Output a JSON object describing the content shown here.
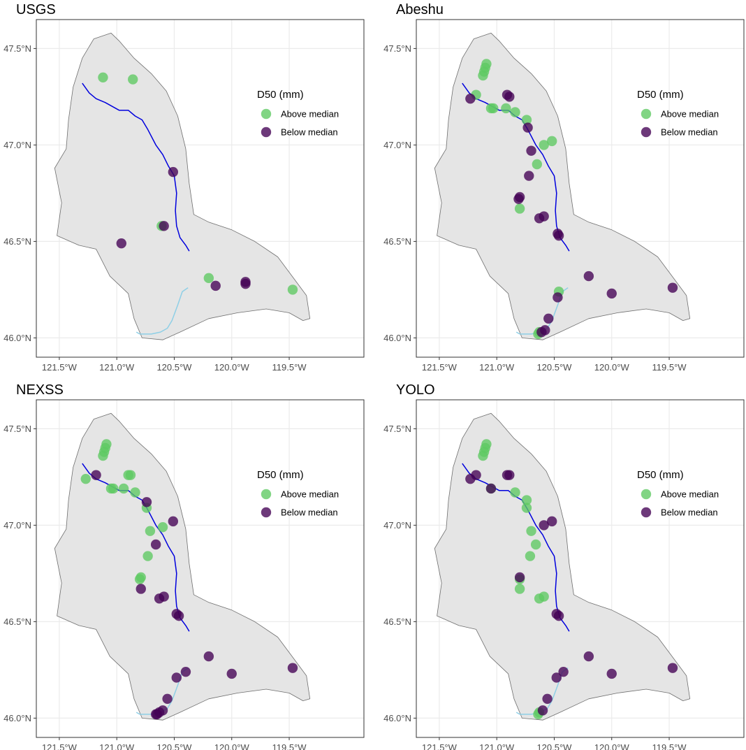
{
  "chart_data": [
    {
      "type": "scatter",
      "title": "USGS",
      "xlim": [
        -121.7,
        -118.85
      ],
      "ylim": [
        45.9,
        47.65
      ],
      "x_ticks": [
        -121.5,
        -121.0,
        -120.5,
        -120.0,
        -119.5
      ],
      "x_tick_labels": [
        "121.5°W",
        "121.0°W",
        "120.5°W",
        "120.0°W",
        "119.5°W"
      ],
      "y_ticks": [
        46.0,
        46.5,
        47.0,
        47.5
      ],
      "y_tick_labels": [
        "46.0°N",
        "46.5°N",
        "47.0°N",
        "47.5°N"
      ],
      "legend_title": "D50 (mm)",
      "legend_position": "right, inside panel",
      "grid": true,
      "series": [
        {
          "name": "Above median",
          "color": "#5ec962",
          "points": [
            [
              -121.12,
              47.35
            ],
            [
              -120.86,
              47.34
            ],
            [
              -120.61,
              46.58
            ],
            [
              -120.2,
              46.31
            ],
            [
              -119.47,
              46.25
            ]
          ]
        },
        {
          "name": "Below median",
          "color": "#440154",
          "points": [
            [
              -120.51,
              46.86
            ],
            [
              -120.59,
              46.58
            ],
            [
              -120.96,
              46.49
            ],
            [
              -120.14,
              46.27
            ],
            [
              -119.88,
              46.29
            ],
            [
              -119.88,
              46.28
            ]
          ]
        }
      ]
    },
    {
      "type": "scatter",
      "title": "Abeshu",
      "xlim": [
        -121.7,
        -118.85
      ],
      "ylim": [
        45.9,
        47.65
      ],
      "x_ticks": [
        -121.5,
        -121.0,
        -120.5,
        -120.0,
        -119.5
      ],
      "x_tick_labels": [
        "121.5°W",
        "121.0°W",
        "120.5°W",
        "120.0°W",
        "119.5°W"
      ],
      "y_ticks": [
        46.0,
        46.5,
        47.0,
        47.5
      ],
      "y_tick_labels": [
        "46.0°N",
        "46.5°N",
        "47.0°N",
        "47.5°N"
      ],
      "legend_title": "D50 (mm)",
      "legend_position": "right, inside panel",
      "grid": true,
      "series": [
        {
          "name": "Above median",
          "color": "#5ec962",
          "points": [
            [
              -121.09,
              47.42
            ],
            [
              -121.1,
              47.4
            ],
            [
              -121.11,
              47.38
            ],
            [
              -121.12,
              47.36
            ],
            [
              -121.18,
              47.26
            ],
            [
              -121.05,
              47.19
            ],
            [
              -121.03,
              47.19
            ],
            [
              -120.92,
              47.19
            ],
            [
              -120.84,
              47.17
            ],
            [
              -120.74,
              47.13
            ],
            [
              -120.59,
              47.0
            ],
            [
              -120.52,
              47.02
            ],
            [
              -120.65,
              46.9
            ],
            [
              -120.8,
              46.67
            ],
            [
              -120.46,
              46.24
            ],
            [
              -120.63,
              46.03
            ],
            [
              -120.64,
              46.02
            ]
          ]
        },
        {
          "name": "Below median",
          "color": "#440154",
          "points": [
            [
              -121.23,
              47.24
            ],
            [
              -120.91,
              47.26
            ],
            [
              -120.89,
              47.25
            ],
            [
              -120.73,
              47.09
            ],
            [
              -120.7,
              46.97
            ],
            [
              -120.72,
              46.84
            ],
            [
              -120.8,
              46.73
            ],
            [
              -120.81,
              46.72
            ],
            [
              -120.63,
              46.62
            ],
            [
              -120.59,
              46.63
            ],
            [
              -120.47,
              46.54
            ],
            [
              -120.46,
              46.53
            ],
            [
              -120.47,
              46.21
            ],
            [
              -120.55,
              46.1
            ],
            [
              -120.58,
              46.04
            ],
            [
              -120.61,
              46.03
            ],
            [
              -120.2,
              46.32
            ],
            [
              -120.0,
              46.23
            ],
            [
              -119.47,
              46.26
            ]
          ]
        }
      ]
    },
    {
      "type": "scatter",
      "title": "NEXSS",
      "xlim": [
        -121.7,
        -118.85
      ],
      "ylim": [
        45.9,
        47.65
      ],
      "x_ticks": [
        -121.5,
        -121.0,
        -120.5,
        -120.0,
        -119.5
      ],
      "x_tick_labels": [
        "121.5°W",
        "121.0°W",
        "120.5°W",
        "120.0°W",
        "119.5°W"
      ],
      "y_ticks": [
        46.0,
        46.5,
        47.0,
        47.5
      ],
      "y_tick_labels": [
        "46.0°N",
        "46.5°N",
        "47.0°N",
        "47.5°N"
      ],
      "legend_title": "D50 (mm)",
      "legend_position": "right, inside panel",
      "grid": true,
      "series": [
        {
          "name": "Above median",
          "color": "#5ec962",
          "points": [
            [
              -121.09,
              47.42
            ],
            [
              -121.1,
              47.4
            ],
            [
              -121.11,
              47.38
            ],
            [
              -121.12,
              47.36
            ],
            [
              -121.27,
              47.24
            ],
            [
              -121.05,
              47.19
            ],
            [
              -121.03,
              47.19
            ],
            [
              -120.94,
              47.19
            ],
            [
              -120.9,
              47.26
            ],
            [
              -120.88,
              47.26
            ],
            [
              -120.84,
              47.17
            ],
            [
              -120.74,
              47.09
            ],
            [
              -120.71,
              46.97
            ],
            [
              -120.6,
              46.99
            ],
            [
              -120.73,
              46.84
            ],
            [
              -120.79,
              46.73
            ],
            [
              -120.8,
              46.72
            ]
          ]
        },
        {
          "name": "Below median",
          "color": "#440154",
          "points": [
            [
              -121.18,
              47.26
            ],
            [
              -120.74,
              47.12
            ],
            [
              -120.51,
              47.02
            ],
            [
              -120.66,
              46.9
            ],
            [
              -120.79,
              46.67
            ],
            [
              -120.63,
              46.62
            ],
            [
              -120.59,
              46.63
            ],
            [
              -120.48,
              46.54
            ],
            [
              -120.46,
              46.53
            ],
            [
              -120.2,
              46.32
            ],
            [
              -120.0,
              46.23
            ],
            [
              -119.47,
              46.26
            ],
            [
              -120.4,
              46.24
            ],
            [
              -120.48,
              46.21
            ],
            [
              -120.56,
              46.1
            ],
            [
              -120.6,
              46.04
            ],
            [
              -120.63,
              46.03
            ],
            [
              -120.65,
              46.02
            ],
            [
              -120.66,
              46.02
            ]
          ]
        }
      ]
    },
    {
      "type": "scatter",
      "title": "YOLO",
      "xlim": [
        -121.7,
        -118.85
      ],
      "ylim": [
        45.9,
        47.65
      ],
      "x_ticks": [
        -121.5,
        -121.0,
        -120.5,
        -120.0,
        -119.5
      ],
      "x_tick_labels": [
        "121.5°W",
        "121.0°W",
        "120.5°W",
        "120.0°W",
        "119.5°W"
      ],
      "y_ticks": [
        46.0,
        46.5,
        47.0,
        47.5
      ],
      "y_tick_labels": [
        "46.0°N",
        "46.5°N",
        "47.0°N",
        "47.5°N"
      ],
      "legend_title": "D50 (mm)",
      "legend_position": "right, inside panel",
      "grid": true,
      "series": [
        {
          "name": "Above median",
          "color": "#5ec962",
          "points": [
            [
              -121.09,
              47.42
            ],
            [
              -121.1,
              47.4
            ],
            [
              -121.11,
              47.38
            ],
            [
              -121.12,
              47.36
            ],
            [
              -121.05,
              47.19
            ],
            [
              -120.84,
              47.17
            ],
            [
              -120.74,
              47.13
            ],
            [
              -120.74,
              47.09
            ],
            [
              -120.7,
              46.97
            ],
            [
              -120.66,
              46.9
            ],
            [
              -120.71,
              46.84
            ],
            [
              -120.8,
              46.72
            ],
            [
              -120.8,
              46.67
            ],
            [
              -120.63,
              46.62
            ],
            [
              -120.59,
              46.63
            ],
            [
              -120.63,
              46.03
            ],
            [
              -120.64,
              46.02
            ]
          ]
        },
        {
          "name": "Below median",
          "color": "#440154",
          "points": [
            [
              -121.23,
              47.24
            ],
            [
              -121.18,
              47.26
            ],
            [
              -121.05,
              47.19
            ],
            [
              -120.91,
              47.26
            ],
            [
              -120.89,
              47.26
            ],
            [
              -120.59,
              47.0
            ],
            [
              -120.52,
              47.02
            ],
            [
              -120.8,
              46.73
            ],
            [
              -120.48,
              46.54
            ],
            [
              -120.46,
              46.53
            ],
            [
              -120.2,
              46.32
            ],
            [
              -120.0,
              46.23
            ],
            [
              -119.47,
              46.26
            ],
            [
              -120.42,
              46.24
            ],
            [
              -120.48,
              46.21
            ],
            [
              -120.56,
              46.1
            ],
            [
              -120.6,
              46.04
            ]
          ]
        }
      ]
    }
  ],
  "colors": {
    "above_median": "#5ec962",
    "below_median": "#440154",
    "basin_fill": "#e5e5e5",
    "basin_outline": "#6e6e6e",
    "main_river": "#0000dd",
    "tributary": "#8ecfe6",
    "gridline": "#ebebeb",
    "panel_border": "#333333"
  }
}
